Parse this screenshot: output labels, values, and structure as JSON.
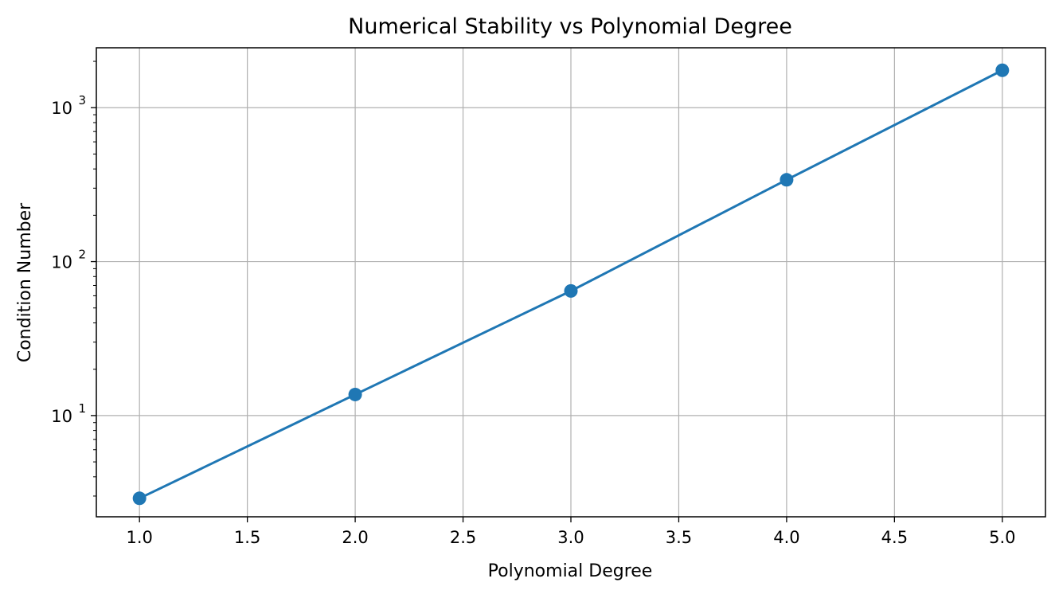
{
  "chart_data": {
    "type": "line",
    "title": "Numerical Stability vs Polynomial Degree",
    "xlabel": "Polynomial Degree",
    "ylabel": "Condition Number",
    "yscale": "log",
    "xlim": [
      0.8,
      5.2
    ],
    "ylim": [
      2.2,
      2450
    ],
    "grid": true,
    "x_ticks": [
      {
        "value": 1.0,
        "label": "1.0"
      },
      {
        "value": 1.5,
        "label": "1.5"
      },
      {
        "value": 2.0,
        "label": "2.0"
      },
      {
        "value": 2.5,
        "label": "2.5"
      },
      {
        "value": 3.0,
        "label": "3.0"
      },
      {
        "value": 3.5,
        "label": "3.5"
      },
      {
        "value": 4.0,
        "label": "4.0"
      },
      {
        "value": 4.5,
        "label": "4.5"
      },
      {
        "value": 5.0,
        "label": "5.0"
      }
    ],
    "y_ticks": [
      {
        "value": 10,
        "base": "10",
        "exp": "1"
      },
      {
        "value": 100,
        "base": "10",
        "exp": "2"
      },
      {
        "value": 1000,
        "base": "10",
        "exp": "3"
      }
    ],
    "series": [
      {
        "color": "#1f77b4",
        "marker": "circle",
        "x": [
          1,
          2,
          3,
          4,
          5
        ],
        "y": [
          2.9,
          13.7,
          64.5,
          340,
          1750
        ]
      }
    ]
  }
}
